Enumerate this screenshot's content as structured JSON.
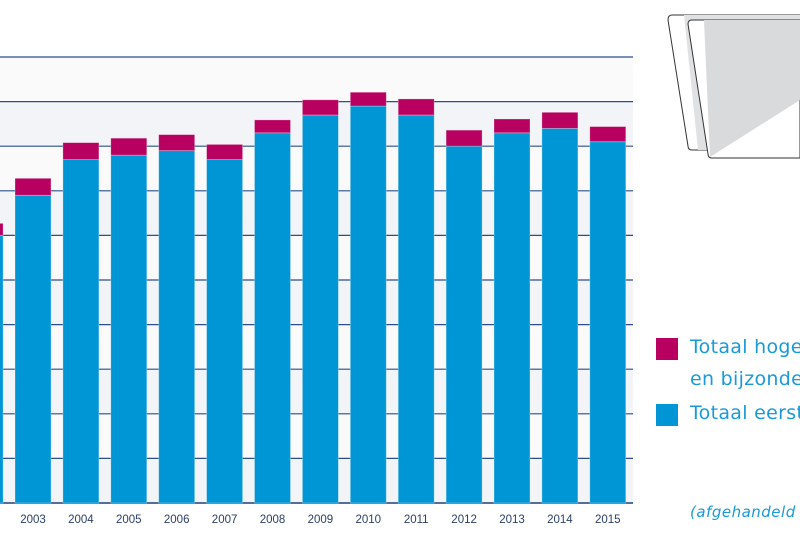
{
  "chart_data": {
    "type": "bar",
    "stacked": true,
    "title": "",
    "xlabel": "",
    "ylabel": "",
    "y_tick_labels_visible": false,
    "ylim": [
      0,
      10
    ],
    "grid": true,
    "categories": [
      "",
      "2003",
      "2004",
      "2005",
      "2006",
      "2007",
      "2008",
      "2009",
      "2010",
      "2011",
      "2012",
      "2013",
      "2014",
      "2015"
    ],
    "series": [
      {
        "name": "Totaal eerst",
        "color": "#0096d6",
        "values": [
          6.0,
          6.9,
          7.7,
          7.8,
          7.9,
          7.7,
          8.3,
          8.7,
          8.9,
          8.7,
          8.0,
          8.3,
          8.4,
          8.1
        ]
      },
      {
        "name": "Totaal hoge en bijzonde",
        "color": "#b80060",
        "values": [
          0.27,
          0.38,
          0.38,
          0.38,
          0.36,
          0.34,
          0.29,
          0.34,
          0.31,
          0.36,
          0.36,
          0.31,
          0.36,
          0.34
        ]
      }
    ],
    "legend_placement": "right"
  },
  "legend": {
    "item1_line1": "Totaal hoge",
    "item1_line2": "en bijzonde",
    "item2": "Totaal eerst"
  },
  "note": "(afgehandeld"
}
